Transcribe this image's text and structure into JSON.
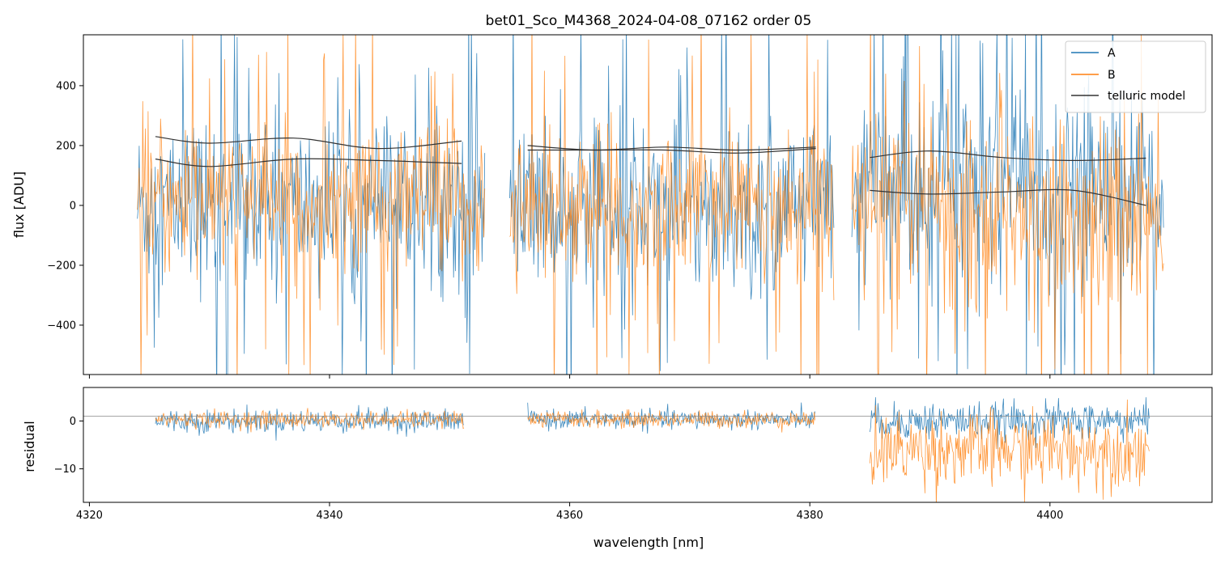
{
  "chart_data": [
    {
      "type": "line",
      "panel": "top",
      "title": "bet01_Sco_M4368_2024-04-08_07162  order 05",
      "xlabel": "",
      "ylabel": "flux [ADU]",
      "xlim": [
        4319.5,
        4413.5
      ],
      "ylim": [
        -565,
        570
      ],
      "xticks": [
        4320,
        4340,
        4360,
        4380,
        4400
      ],
      "yticks": [
        -400,
        -200,
        0,
        200,
        400
      ],
      "ytick_labels": [
        "−400",
        "−200",
        "0",
        "200",
        "400"
      ],
      "legend": {
        "placement": "top-right",
        "entries": [
          "A",
          "B",
          "telluric model"
        ]
      },
      "colors": {
        "A": "#1f77b4",
        "B": "#ff7f0e",
        "telluric": "#333333"
      },
      "segments": [
        {
          "x_range": [
            4324.0,
            4353.0
          ],
          "A_noise": {
            "center": 0,
            "amplitude": 260,
            "spike": 620
          },
          "B_noise": {
            "center": 10,
            "amplitude": 230,
            "spike": 560
          },
          "telluric_curves": [
            {
              "x": [
                4325.5,
                4330,
                4337,
                4344,
                4351
              ],
              "y": [
                230,
                208,
                225,
                190,
                215
              ]
            },
            {
              "x": [
                4325.5,
                4330,
                4337,
                4344,
                4351
              ],
              "y": [
                155,
                130,
                155,
                150,
                140
              ]
            }
          ]
        },
        {
          "x_range": [
            4355.0,
            4382.0
          ],
          "A_noise": {
            "center": 0,
            "amplitude": 255,
            "spike": 610
          },
          "B_noise": {
            "center": 5,
            "amplitude": 225,
            "spike": 560
          },
          "telluric_curves": [
            {
              "x": [
                4356.5,
                4362,
                4368,
                4374,
                4380.5
              ],
              "y": [
                200,
                185,
                195,
                185,
                195
              ]
            },
            {
              "x": [
                4356.5,
                4362,
                4368,
                4374,
                4380.5
              ],
              "y": [
                185,
                185,
                185,
                175,
                190
              ]
            }
          ]
        },
        {
          "x_range": [
            4383.5,
            4409.5
          ],
          "A_noise": {
            "center": 70,
            "amplitude": 300,
            "spike": 650
          },
          "B_noise": {
            "center": -40,
            "amplitude": 290,
            "spike": 600
          },
          "telluric_curves": [
            {
              "x": [
                4385,
                4390,
                4396,
                4402,
                4408
              ],
              "y": [
                160,
                182,
                160,
                150,
                158
              ]
            },
            {
              "x": [
                4385,
                4390,
                4396,
                4402,
                4408
              ],
              "y": [
                50,
                38,
                45,
                50,
                0
              ]
            }
          ]
        }
      ]
    },
    {
      "type": "line",
      "panel": "bottom",
      "title": "",
      "xlabel": "wavelength [nm]",
      "ylabel": "residual",
      "xlim": [
        4319.5,
        4413.5
      ],
      "ylim": [
        -17,
        7
      ],
      "xticks": [
        4320,
        4340,
        4360,
        4380,
        4400
      ],
      "yticks": [
        -10,
        0
      ],
      "ytick_labels": [
        "−10",
        "0"
      ],
      "zero_line": {
        "y": 1,
        "color": "#888888"
      },
      "segments": [
        {
          "x_range": [
            4325.5,
            4351.2
          ],
          "A_noise": {
            "center": 0,
            "amplitude": 2.2
          },
          "B_noise": {
            "center": 0.3,
            "amplitude": 1.6
          }
        },
        {
          "x_range": [
            4356.5,
            4380.5
          ],
          "A_noise": {
            "center": 0.3,
            "amplitude": 1.8
          },
          "B_noise": {
            "center": 0.3,
            "amplitude": 1.6
          }
        },
        {
          "x_range": [
            4385.0,
            4408.3
          ],
          "A_noise": {
            "center": 0,
            "amplitude": 3.5
          },
          "B_noise": {
            "center": -6,
            "amplitude": 7
          }
        }
      ]
    }
  ]
}
